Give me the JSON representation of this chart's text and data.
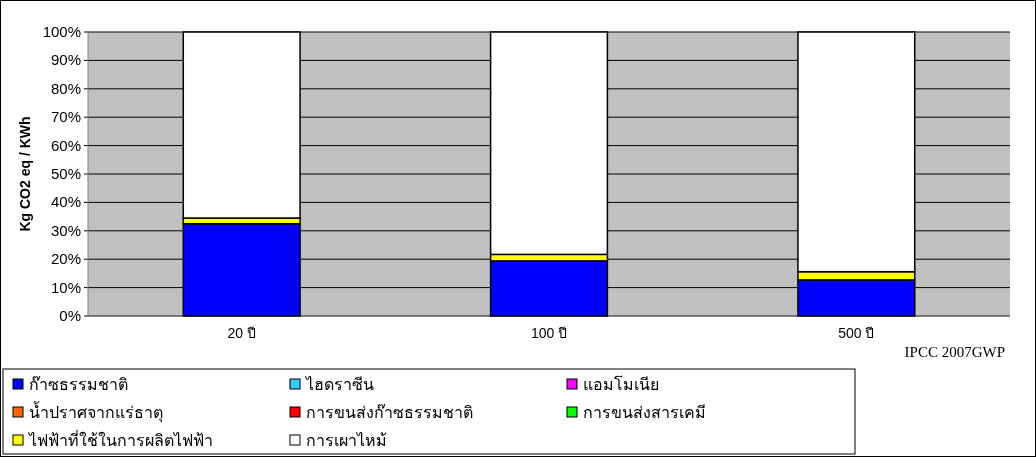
{
  "chart_data": {
    "type": "bar",
    "stacked": true,
    "ylabel": "Kg CO2 eq / KWh",
    "categories": [
      "20 ปี",
      "100 ปี",
      "500 ปี"
    ],
    "series": [
      {
        "name": "ก๊าซธรรมชาติ",
        "color": "#0000ff",
        "values": [
          32.5,
          19.4,
          12.7
        ]
      },
      {
        "name": "ไฮดราซีน",
        "color": "#33ccff",
        "values": [
          0,
          0,
          0
        ]
      },
      {
        "name": "แอมโมเนีย",
        "color": "#ff00ff",
        "values": [
          0,
          0,
          0
        ]
      },
      {
        "name": "น้ำปราศจากแร่ธาตุ",
        "color": "#ff6600",
        "values": [
          0,
          0,
          0
        ]
      },
      {
        "name": "การขนส่งก๊าซธรรมชาติ",
        "color": "#ff0000",
        "values": [
          0,
          0,
          0
        ]
      },
      {
        "name": "การขนส่งสารเคมี",
        "color": "#00ff00",
        "values": [
          0,
          0,
          0
        ]
      },
      {
        "name": "ไฟฟ้าที่ใช้ในการผลิตไฟฟ้า",
        "color": "#ffff00",
        "values": [
          2.0,
          2.3,
          2.9
        ]
      },
      {
        "name": "การเผาไหม้",
        "color": "#ffffff",
        "values": [
          65.5,
          78.3,
          84.4
        ]
      }
    ],
    "ylim": [
      0,
      100
    ],
    "yticks": [
      {
        "value": 0,
        "label": "0%"
      },
      {
        "value": 10,
        "label": "10%"
      },
      {
        "value": 20,
        "label": "20%"
      },
      {
        "value": 30,
        "label": "30%"
      },
      {
        "value": 40,
        "label": "40%"
      },
      {
        "value": 50,
        "label": "50%"
      },
      {
        "value": 60,
        "label": "60%"
      },
      {
        "value": 70,
        "label": "70%"
      },
      {
        "value": 80,
        "label": "80%"
      },
      {
        "value": 90,
        "label": "90%"
      },
      {
        "value": 100,
        "label": "100%"
      }
    ],
    "grid": "y",
    "legend": "bottom",
    "annotations": [
      "IPCC 2007GWP"
    ]
  }
}
